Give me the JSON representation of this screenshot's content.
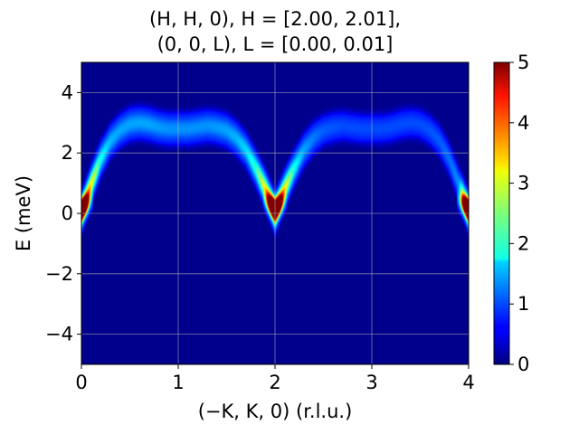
{
  "chart_data": {
    "type": "heatmap",
    "title_lines": [
      "(H, H, 0), H = [2.00, 2.01],",
      "(0, 0, L), L = [0.00, 0.01]"
    ],
    "xlabel": "(−K, K, 0) (r.l.u.)",
    "ylabel": "E (meV)",
    "xlim": [
      0,
      4
    ],
    "ylim": [
      -5,
      5
    ],
    "x_ticks": [
      0,
      1,
      2,
      3,
      4
    ],
    "x_tick_labels": [
      "0",
      "1",
      "2",
      "3",
      "4"
    ],
    "y_ticks": [
      -4,
      -2,
      0,
      2,
      4
    ],
    "y_tick_labels": [
      "−4",
      "−2",
      "0",
      "2",
      "4"
    ],
    "grid": true,
    "colormap": "jet",
    "color_range": [
      0,
      5
    ],
    "colorbar_ticks": [
      0,
      1,
      2,
      3,
      4,
      5
    ],
    "colorbar_tick_labels": [
      "0",
      "1",
      "2",
      "3",
      "4",
      "5"
    ],
    "dispersion": {
      "x": [
        0.0,
        0.1,
        0.2,
        0.3,
        0.4,
        0.5,
        0.6,
        0.7,
        0.8,
        0.9,
        1.0,
        1.1,
        1.2,
        1.3,
        1.4,
        1.5,
        1.6,
        1.7,
        1.8,
        1.9,
        2.0,
        2.1,
        2.2,
        2.3,
        2.4,
        2.5,
        2.6,
        2.7,
        2.8,
        2.9,
        3.0,
        3.1,
        3.2,
        3.3,
        3.4,
        3.5,
        3.6,
        3.7,
        3.8,
        3.9,
        4.0
      ],
      "energy": [
        0.0,
        0.95,
        1.8,
        2.4,
        2.75,
        2.95,
        3.0,
        2.95,
        2.85,
        2.8,
        2.8,
        2.8,
        2.85,
        2.9,
        2.85,
        2.75,
        2.5,
        2.1,
        1.5,
        0.8,
        0.0,
        0.8,
        1.5,
        2.1,
        2.5,
        2.75,
        2.85,
        2.9,
        2.85,
        2.8,
        2.8,
        2.8,
        2.85,
        2.95,
        3.0,
        2.95,
        2.75,
        2.4,
        1.8,
        0.95,
        0.0
      ],
      "peak_intensity": [
        5.0,
        3.0,
        1.6,
        1.1,
        1.0,
        1.0,
        1.0,
        1.0,
        0.95,
        0.9,
        0.9,
        0.9,
        0.9,
        0.9,
        0.95,
        1.0,
        1.1,
        1.3,
        1.8,
        3.0,
        5.0,
        3.0,
        1.6,
        1.0,
        0.75,
        0.6,
        0.55,
        0.5,
        0.5,
        0.5,
        0.5,
        0.5,
        0.5,
        0.5,
        0.5,
        0.5,
        0.55,
        0.6,
        0.7,
        0.9,
        5.0
      ]
    }
  }
}
